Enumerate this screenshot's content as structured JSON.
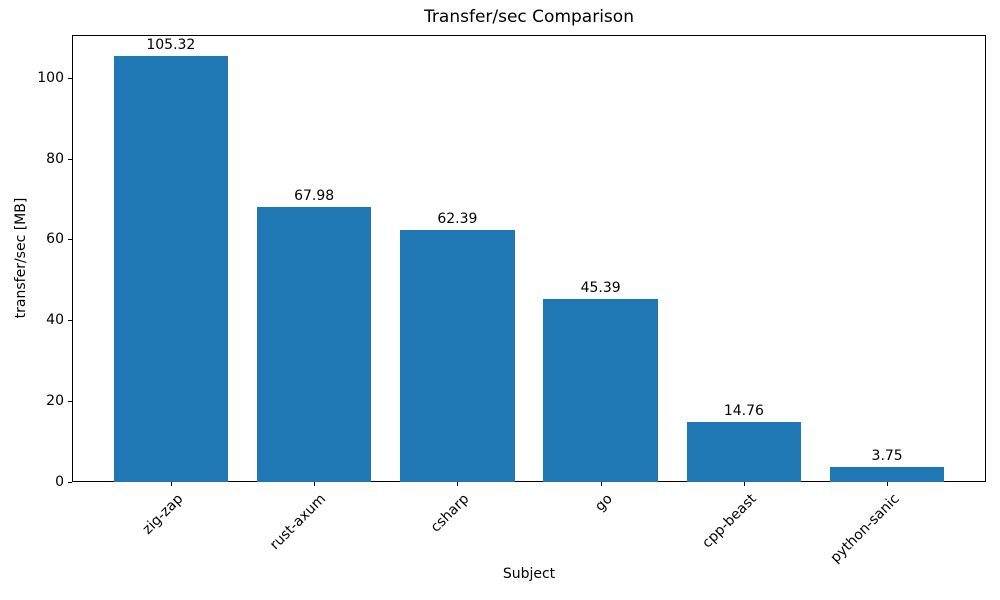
{
  "chart_data": {
    "type": "bar",
    "title": "Transfer/sec Comparison",
    "xlabel": "Subject",
    "ylabel": "transfer/sec [MB]",
    "categories": [
      "zig-zap",
      "rust-axum",
      "csharp",
      "go",
      "cpp-beast",
      "python-sanic"
    ],
    "values": [
      105.32,
      67.98,
      62.39,
      45.39,
      14.76,
      3.75
    ],
    "value_labels": [
      "105.32",
      "67.98",
      "62.39",
      "45.39",
      "14.76",
      "3.75"
    ],
    "yticks": [
      0,
      20,
      40,
      60,
      80,
      100
    ],
    "ylim": [
      0,
      110.59
    ],
    "bar_color": "#1f77b4",
    "grid": false,
    "legend_position": "none"
  }
}
